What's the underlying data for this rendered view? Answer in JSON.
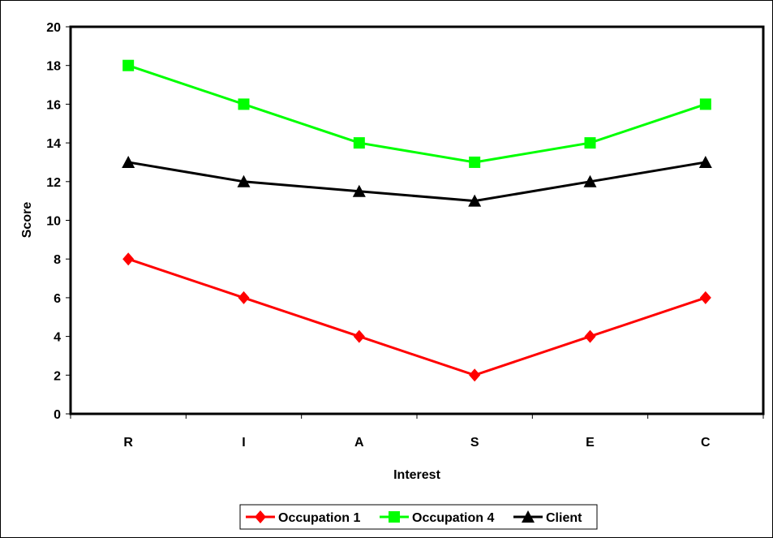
{
  "chart_data": {
    "type": "line",
    "categories": [
      "R",
      "I",
      "A",
      "S",
      "E",
      "C"
    ],
    "xlabel": "Interest",
    "ylabel": "Score",
    "ylim": [
      0,
      20
    ],
    "yticks": [
      0,
      2,
      4,
      6,
      8,
      10,
      12,
      14,
      16,
      18,
      20
    ],
    "grid": false,
    "legend_position": "bottom",
    "series": [
      {
        "name": "Occupation 1",
        "values": [
          8,
          6,
          4,
          2,
          4,
          6
        ],
        "color": "#ff0000",
        "marker": "diamond"
      },
      {
        "name": "Occupation 4",
        "values": [
          18,
          16,
          14,
          13,
          14,
          16
        ],
        "color": "#00ff00",
        "marker": "square"
      },
      {
        "name": "Client",
        "values": [
          13,
          12,
          11.5,
          11,
          12,
          13
        ],
        "color": "#000000",
        "marker": "triangle"
      }
    ]
  }
}
